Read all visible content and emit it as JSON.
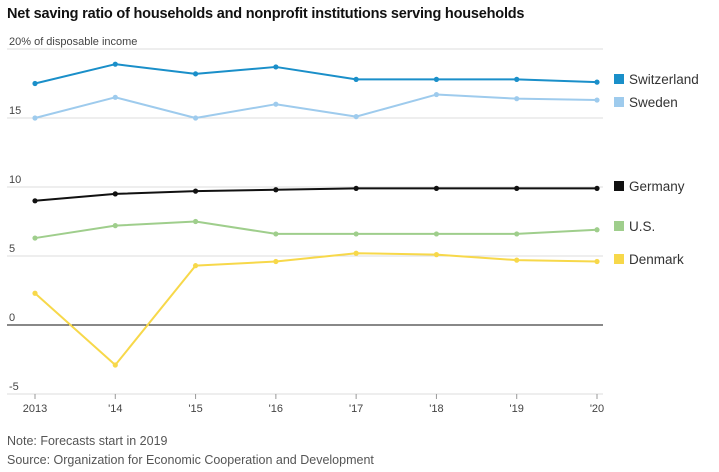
{
  "title": "Net saving ratio of households and nonprofit institutions serving households",
  "note": "Note: Forecasts start in 2019",
  "source": "Source: Organization for Economic Cooperation and Development",
  "chart_data": {
    "type": "line",
    "y_unit_label": "20% of disposable income",
    "x": [
      2013,
      2014,
      2015,
      2016,
      2017,
      2018,
      2019,
      2020
    ],
    "x_tick_labels": [
      "2013",
      "'14",
      "'15",
      "'16",
      "'17",
      "'18",
      "'19",
      "'20"
    ],
    "y_ticks": [
      20,
      15,
      10,
      5,
      0,
      -5
    ],
    "y_tick_labels": [
      "20% of disposable income",
      "15",
      "10",
      "5",
      "0",
      "-5"
    ],
    "ylim": [
      -5,
      20
    ],
    "grid": true,
    "legend_position": "right",
    "series": [
      {
        "name": "Switzerland",
        "color": "#1a8fc9",
        "values": [
          17.5,
          18.9,
          18.2,
          18.7,
          17.8,
          17.8,
          17.8,
          17.6
        ]
      },
      {
        "name": "Sweden",
        "color": "#9ecbed",
        "values": [
          15.0,
          16.5,
          15.0,
          16.0,
          15.1,
          16.7,
          16.4,
          16.3
        ]
      },
      {
        "name": "Germany",
        "color": "#111111",
        "values": [
          9.0,
          9.5,
          9.7,
          9.8,
          9.9,
          9.9,
          9.9,
          9.9
        ]
      },
      {
        "name": "U.S.",
        "color": "#9fce8c",
        "values": [
          6.3,
          7.2,
          7.5,
          6.6,
          6.6,
          6.6,
          6.6,
          6.9
        ]
      },
      {
        "name": "Denmark",
        "color": "#f7d84a",
        "values": [
          2.3,
          -2.9,
          4.3,
          4.6,
          5.2,
          5.1,
          4.7,
          4.6
        ]
      }
    ]
  }
}
